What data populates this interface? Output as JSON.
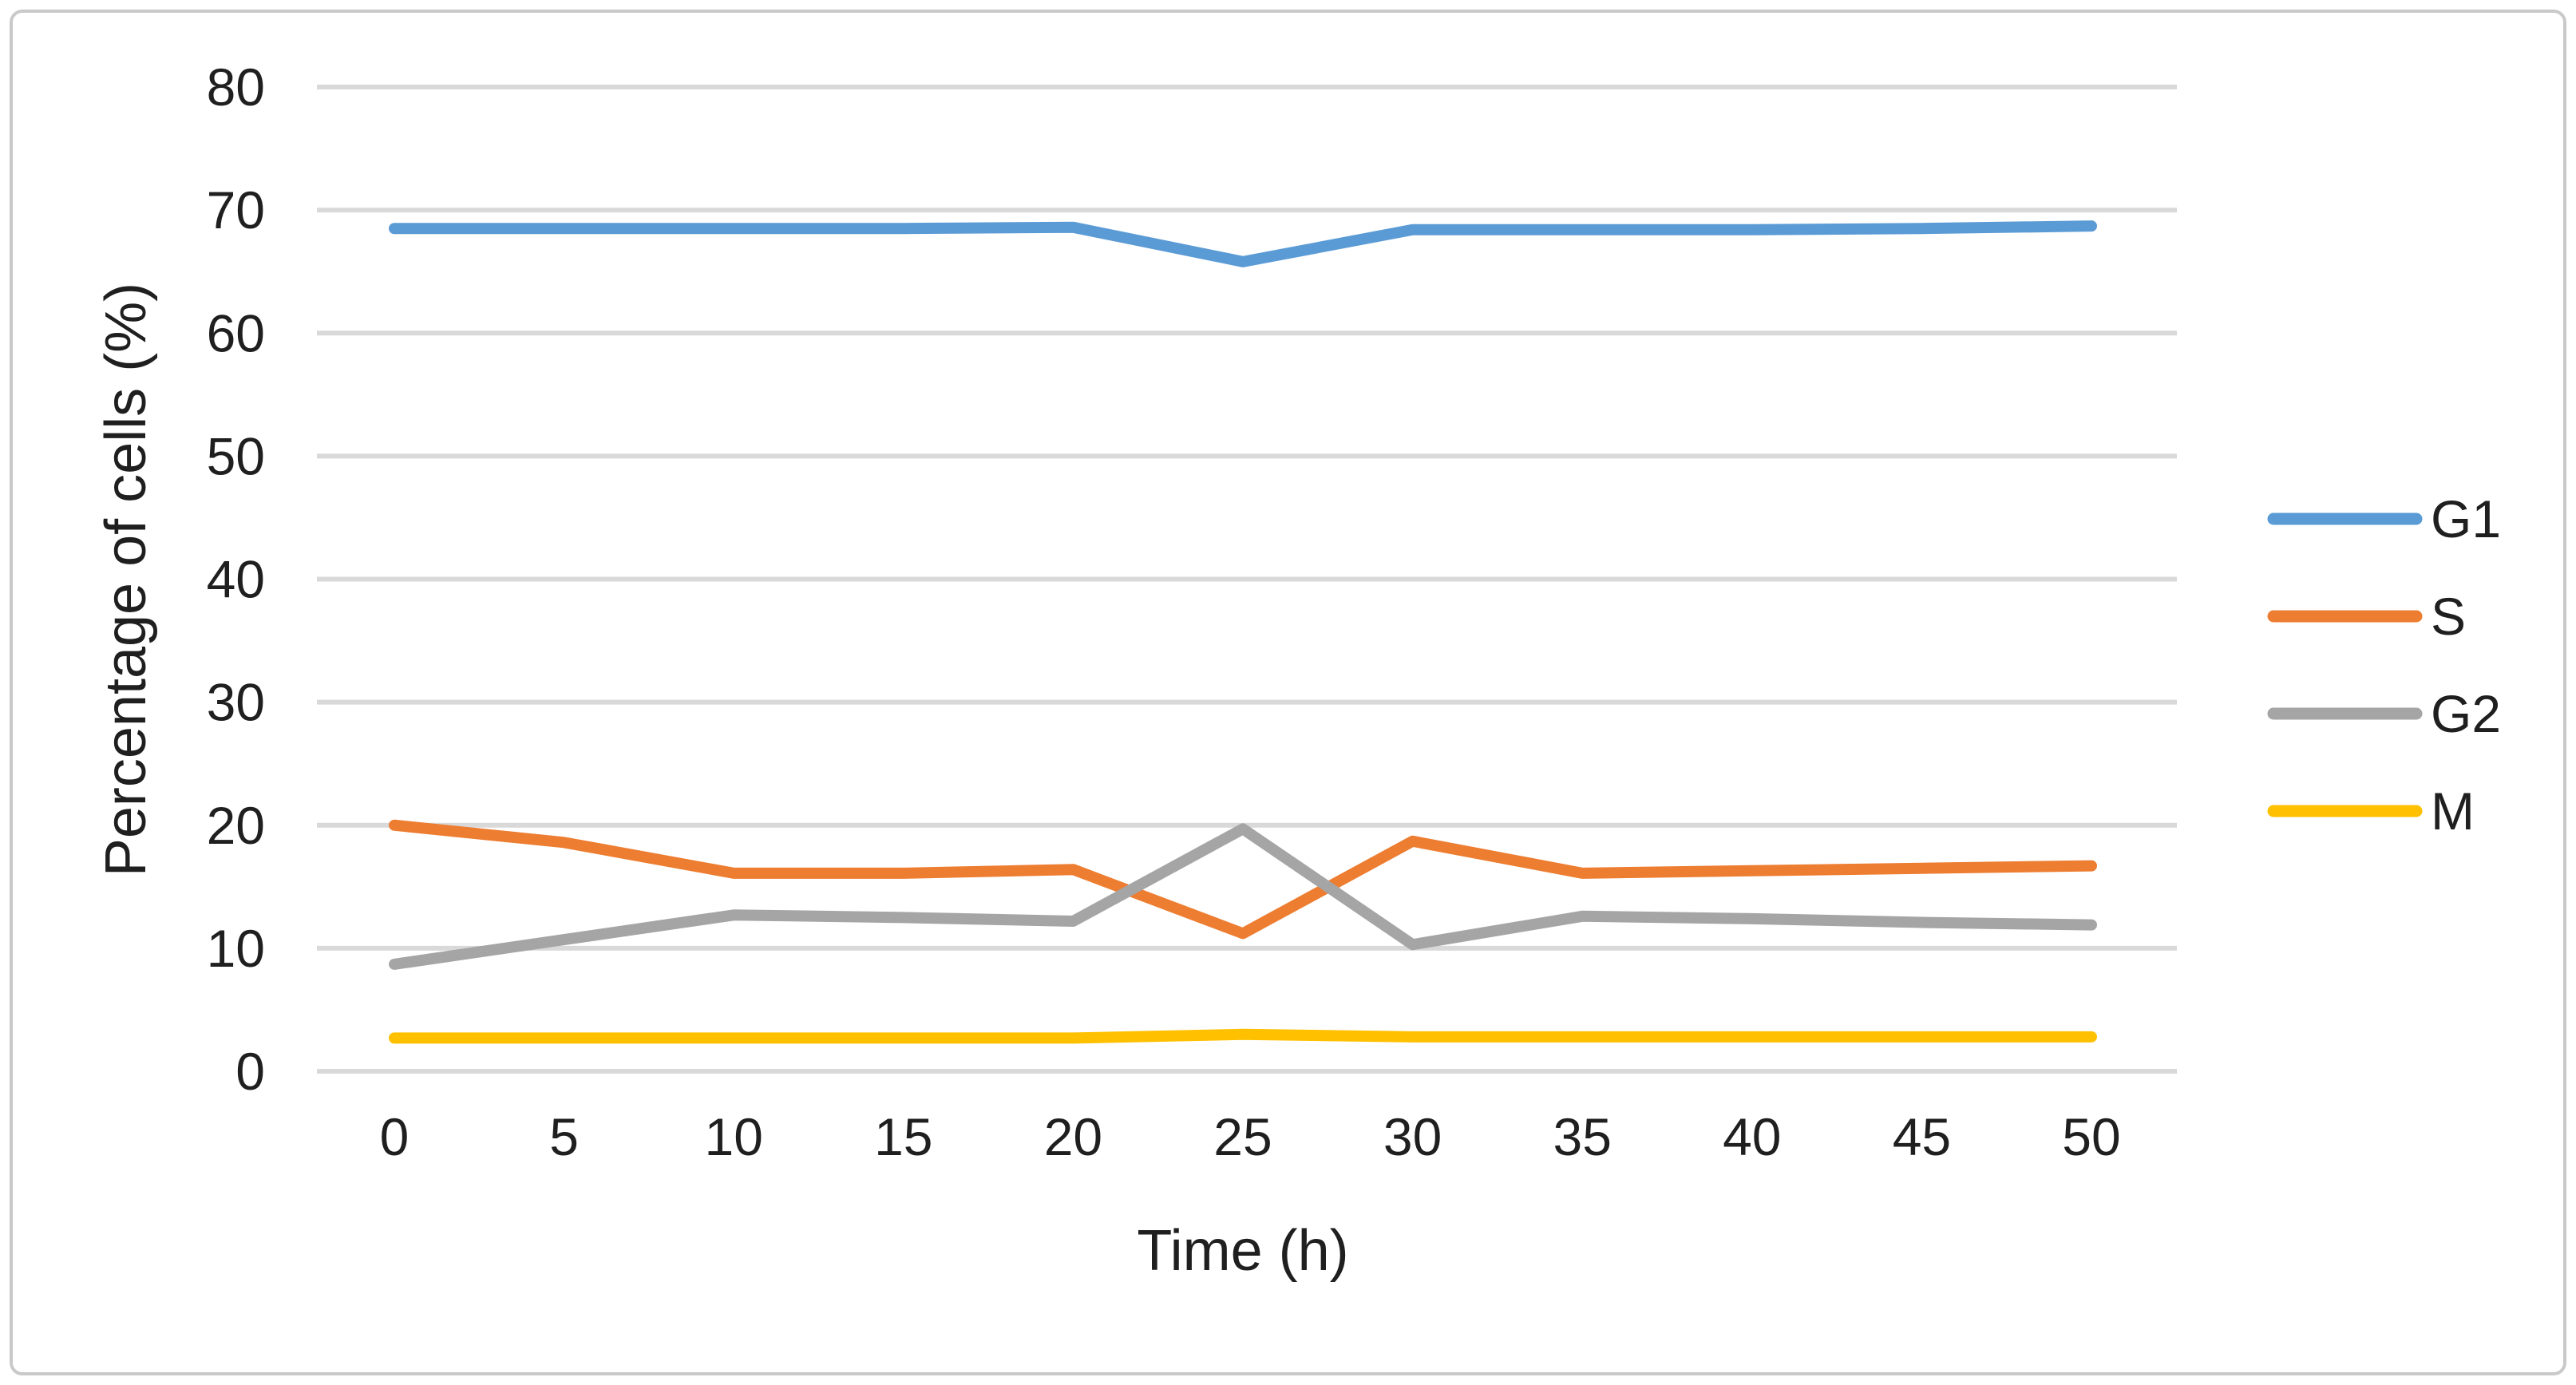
{
  "figure": {
    "background": "#FFFFFF",
    "border_color": "#C9C9C9"
  },
  "chart_data": {
    "type": "line",
    "title": "",
    "xlabel": "Time (h)",
    "ylabel": "Percentage of cells (%)",
    "x": [
      0,
      5,
      10,
      15,
      20,
      25,
      30,
      35,
      40,
      45,
      50
    ],
    "x_tick_labels": [
      "0",
      "5",
      "10",
      "15",
      "20",
      "25",
      "30",
      "35",
      "40",
      "45",
      "50"
    ],
    "y_ticks": [
      0,
      10,
      20,
      30,
      40,
      50,
      60,
      70,
      80
    ],
    "y_tick_labels": [
      "0",
      "10",
      "20",
      "30",
      "40",
      "50",
      "60",
      "70",
      "80"
    ],
    "ylim": [
      0,
      80
    ],
    "grid": "horizontal",
    "gridline_color": "#D9D9D9",
    "tick_label_color": "#1F1F1F",
    "legend_position": "right",
    "legend_labels": [
      "G1",
      "S",
      "G2",
      "M"
    ],
    "series": [
      {
        "name": "G1",
        "color": "#5B9BD5",
        "values": [
          68.5,
          68.5,
          68.5,
          68.5,
          68.6,
          65.8,
          68.4,
          68.4,
          68.4,
          68.5,
          68.7
        ]
      },
      {
        "name": "S",
        "color": "#ED7D31",
        "values": [
          20.0,
          18.6,
          16.1,
          16.1,
          16.4,
          11.2,
          18.7,
          16.1,
          16.3,
          16.5,
          16.7
        ]
      },
      {
        "name": "G2",
        "color": "#A5A5A5",
        "values": [
          8.7,
          10.7,
          12.7,
          12.5,
          12.2,
          19.7,
          10.3,
          12.6,
          12.4,
          12.1,
          11.9
        ]
      },
      {
        "name": "M",
        "color": "#FFC000",
        "values": [
          2.7,
          2.7,
          2.7,
          2.7,
          2.7,
          3.0,
          2.8,
          2.8,
          2.8,
          2.8,
          2.8
        ]
      }
    ]
  }
}
